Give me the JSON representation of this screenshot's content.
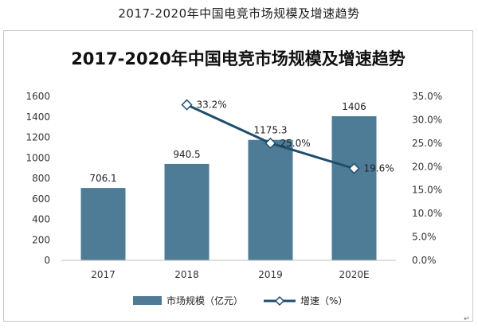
{
  "page": {
    "outer_title": "2017-2020年中国电竞市场规模及增速趋势",
    "return_mark": "↵"
  },
  "chart_data": {
    "type": "bar+line",
    "title": "2017-2020年中国电竞市场规模及增速趋势",
    "categories": [
      "2017",
      "2018",
      "2019",
      "2020E"
    ],
    "series": [
      {
        "name": "市场规模（亿元）",
        "type": "bar",
        "axis": "left",
        "values": [
          706.1,
          940.5,
          1175.3,
          1406
        ],
        "labels": [
          "706.1",
          "940.5",
          "1175.3",
          "1406"
        ],
        "color": "#4e7c96"
      },
      {
        "name": "增速（%）",
        "type": "line",
        "axis": "right",
        "values": [
          null,
          33.2,
          25.0,
          19.6
        ],
        "labels": [
          "",
          "33.2%",
          "25.0%",
          "19.6%"
        ],
        "color": "#1f4e6e",
        "marker": "diamond"
      }
    ],
    "y_left": {
      "min": 0,
      "max": 1600,
      "ticks": [
        "0",
        "200",
        "400",
        "600",
        "800",
        "1000",
        "1200",
        "1400",
        "1600"
      ]
    },
    "y_right": {
      "min": 0,
      "max": 35,
      "ticks": [
        "0.0%",
        "5.0%",
        "10.0%",
        "15.0%",
        "20.0%",
        "25.0%",
        "30.0%",
        "35.0%"
      ]
    },
    "grid": false,
    "legend": "bottom"
  }
}
